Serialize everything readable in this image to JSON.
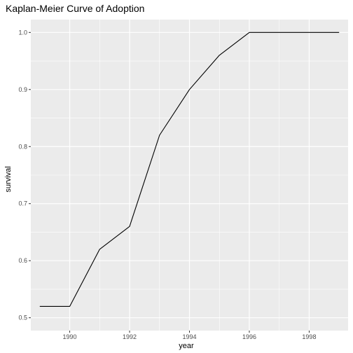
{
  "chart_data": {
    "type": "line",
    "title": "Kaplan-Meier Curve of Adoption",
    "xlabel": "year",
    "ylabel": "survival",
    "xlim": [
      1988.7,
      1999.3
    ],
    "ylim": [
      0.5,
      1.0
    ],
    "x_ticks": [
      1990,
      1992,
      1994,
      1996,
      1998
    ],
    "y_ticks": [
      0.5,
      0.6,
      0.7,
      0.8,
      0.9,
      1.0
    ],
    "x_tick_labels": [
      "1990",
      "1992",
      "1994",
      "1996",
      "1998"
    ],
    "y_tick_labels": [
      "0.5",
      "0.6",
      "0.7",
      "0.8",
      "0.9",
      "1.0"
    ],
    "grid": true,
    "series": [
      {
        "x": [
          1989,
          1990,
          1991,
          1992,
          1993,
          1994,
          1995,
          1996,
          1997,
          1998,
          1999
        ],
        "y": [
          0.52,
          0.52,
          0.62,
          0.66,
          0.82,
          0.9,
          0.96,
          1.0,
          1.0,
          1.0,
          1.0
        ]
      }
    ],
    "colors": {
      "panel": "#ebebeb",
      "grid": "#ffffff",
      "line": "#000000",
      "tick_text": "#4d4d4d"
    }
  }
}
